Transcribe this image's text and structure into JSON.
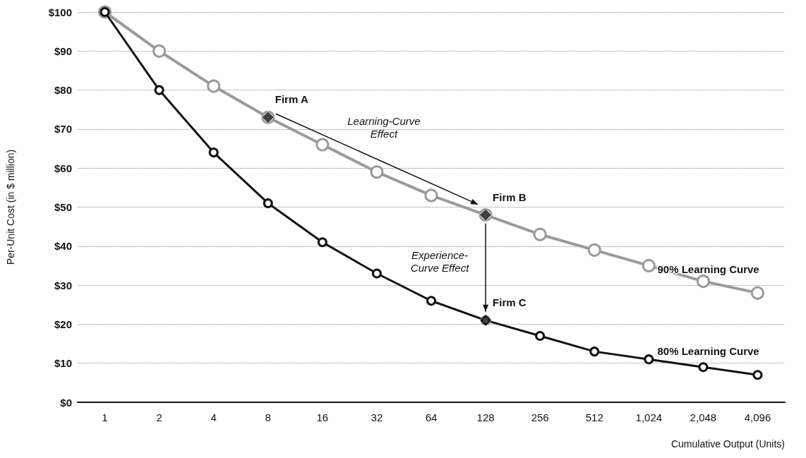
{
  "chart_data": {
    "type": "line",
    "ylabel": "Per-Unit Cost (in $ million)",
    "xlabel": "Cumulative Output (Units)",
    "categories": [
      "1",
      "2",
      "4",
      "8",
      "16",
      "32",
      "64",
      "128",
      "256",
      "512",
      "1,024",
      "2,048",
      "4,096"
    ],
    "series": [
      {
        "name": "90% Learning Curve",
        "color": "#9a9a9a",
        "values": [
          100,
          90,
          81,
          73,
          66,
          59,
          53,
          48,
          43,
          39,
          35,
          31,
          28
        ]
      },
      {
        "name": "80% Learning Curve",
        "color": "#111111",
        "values": [
          100,
          80,
          64,
          51,
          41,
          33,
          26,
          21,
          17,
          13,
          11,
          9,
          7
        ]
      },
      {
        "type": "scatter",
        "color": "#111111",
        "marker": "diamond",
        "x": [
          "8",
          "128",
          "128"
        ],
        "values": [
          73,
          48,
          21
        ]
      }
    ],
    "ylim": [
      0,
      100
    ],
    "yticks": [
      {
        "value": 0,
        "label": "$0"
      },
      {
        "value": 10,
        "label": "$10"
      },
      {
        "value": 20,
        "label": "$20"
      },
      {
        "value": 30,
        "label": "$30"
      },
      {
        "value": 40,
        "label": "$40"
      },
      {
        "value": 50,
        "label": "$50"
      },
      {
        "value": 60,
        "label": "$60"
      },
      {
        "value": 70,
        "label": "$70"
      },
      {
        "value": 80,
        "label": "$80"
      },
      {
        "value": 90,
        "label": "$90"
      },
      {
        "value": 100,
        "label": "$100"
      }
    ],
    "grid": "y",
    "marker": "circle",
    "line_style": "solid",
    "legend": false,
    "annotations": [
      {
        "text": "Firm A",
        "x": "8",
        "y": 73
      },
      {
        "text": "Firm B",
        "x": "128",
        "y": 48
      },
      {
        "text": "Firm C",
        "x": "128",
        "y": 21
      },
      "Learning-Curve Effect",
      "Experience-Curve Effect"
    ]
  }
}
